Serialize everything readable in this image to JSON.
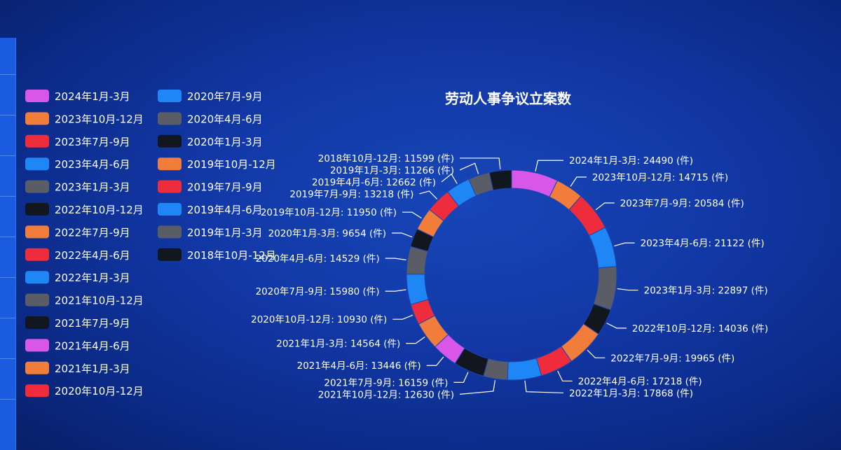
{
  "chart_data": {
    "type": "pie",
    "title": "劳动人事争议立案数",
    "unit": "件",
    "legend_position": "left",
    "slices": [
      {
        "label": "2024年1月-3月",
        "value": 24490,
        "color": "#d957e8"
      },
      {
        "label": "2023年10月-12月",
        "value": 14715,
        "color": "#f27d3a"
      },
      {
        "label": "2023年7月-9月",
        "value": 20584,
        "color": "#ee2c3c"
      },
      {
        "label": "2023年4月-6月",
        "value": 21122,
        "color": "#1f86f5"
      },
      {
        "label": "2023年1月-3月",
        "value": 22897,
        "color": "#5a5d66"
      },
      {
        "label": "2022年10月-12月",
        "value": 14036,
        "color": "#12161f"
      },
      {
        "label": "2022年7月-9月",
        "value": 19965,
        "color": "#f27d3a"
      },
      {
        "label": "2022年4月-6月",
        "value": 17218,
        "color": "#ee2c3c"
      },
      {
        "label": "2022年1月-3月",
        "value": 17868,
        "color": "#1f86f5"
      },
      {
        "label": "2021年10月-12月",
        "value": 12630,
        "color": "#5a5d66"
      },
      {
        "label": "2021年7月-9月",
        "value": 16159,
        "color": "#12161f"
      },
      {
        "label": "2021年4月-6月",
        "value": 13446,
        "color": "#d957e8"
      },
      {
        "label": "2021年1月-3月",
        "value": 14564,
        "color": "#f27d3a"
      },
      {
        "label": "2020年10月-12月",
        "value": 10930,
        "color": "#ee2c3c"
      },
      {
        "label": "2020年7月-9月",
        "value": 15980,
        "color": "#1f86f5"
      },
      {
        "label": "2020年4月-6月",
        "value": 14529,
        "color": "#5a5d66"
      },
      {
        "label": "2020年1月-3月",
        "value": 9654,
        "color": "#12161f"
      },
      {
        "label": "2019年10月-12月",
        "value": 11950,
        "color": "#f27d3a"
      },
      {
        "label": "2019年7月-9月",
        "value": 13218,
        "color": "#ee2c3c"
      },
      {
        "label": "2019年4月-6月",
        "value": 12662,
        "color": "#1f86f5"
      },
      {
        "label": "2019年1月-3月",
        "value": 11266,
        "color": "#5a5d66"
      },
      {
        "label": "2018年10月-12月",
        "value": 11599,
        "color": "#12161f"
      }
    ]
  }
}
